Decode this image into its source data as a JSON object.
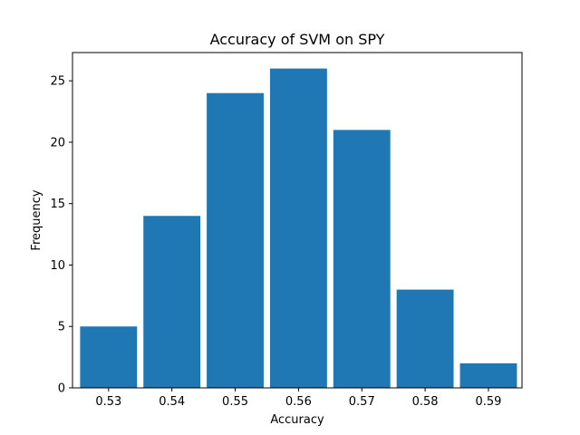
{
  "chart_data": {
    "type": "bar",
    "title": "Accuracy of SVM on SPY",
    "xlabel": "Accuracy",
    "ylabel": "Frequency",
    "bars": [
      {
        "x": 0.53,
        "value": 5
      },
      {
        "x": 0.54,
        "value": 14
      },
      {
        "x": 0.55,
        "value": 24
      },
      {
        "x": 0.56,
        "value": 26
      },
      {
        "x": 0.57,
        "value": 21
      },
      {
        "x": 0.58,
        "value": 8
      },
      {
        "x": 0.59,
        "value": 2
      }
    ],
    "bar_width": 0.009,
    "xlim": [
      0.5243,
      0.5953
    ],
    "ylim": [
      0,
      27.3
    ],
    "xticks": [
      {
        "value": 0.53,
        "label": "0.53"
      },
      {
        "value": 0.54,
        "label": "0.54"
      },
      {
        "value": 0.55,
        "label": "0.55"
      },
      {
        "value": 0.56,
        "label": "0.56"
      },
      {
        "value": 0.57,
        "label": "0.57"
      },
      {
        "value": 0.58,
        "label": "0.58"
      },
      {
        "value": 0.59,
        "label": "0.59"
      }
    ],
    "yticks": [
      {
        "value": 0,
        "label": "0"
      },
      {
        "value": 5,
        "label": "5"
      },
      {
        "value": 10,
        "label": "10"
      },
      {
        "value": 15,
        "label": "15"
      },
      {
        "value": 20,
        "label": "20"
      },
      {
        "value": 25,
        "label": "25"
      }
    ],
    "grid": false,
    "legend": "none",
    "colors": {
      "bar": "#1f77b4",
      "axis": "#000000",
      "background": "#ffffff"
    }
  }
}
